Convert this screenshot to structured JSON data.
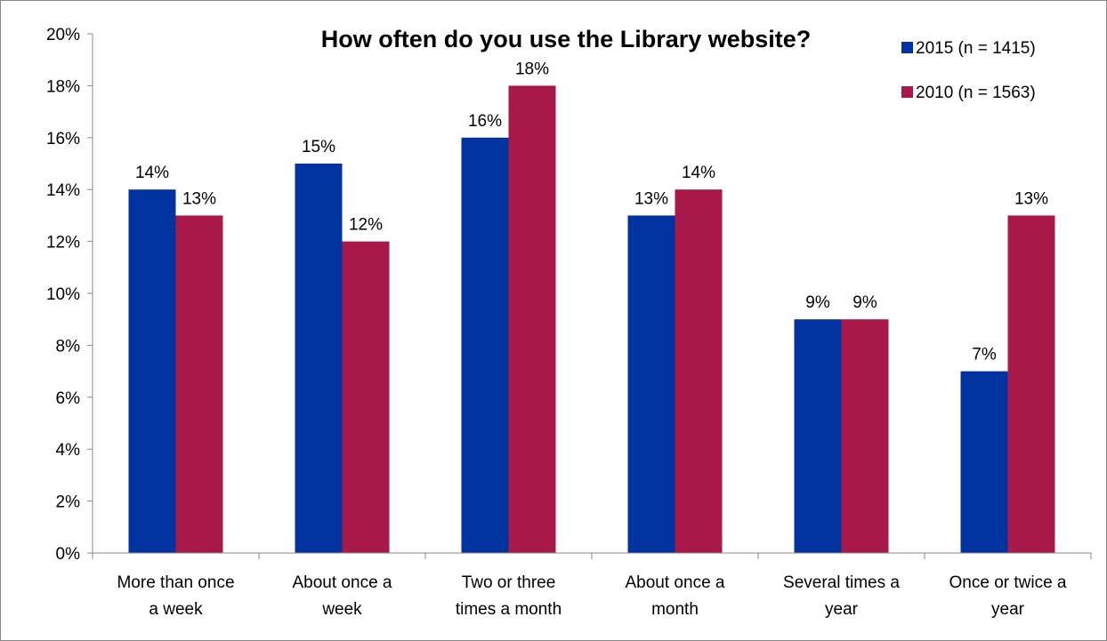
{
  "chart_data": {
    "type": "bar",
    "title": "How often do you use the Library website?",
    "xlabel": "",
    "ylabel": "",
    "ylim": [
      0,
      20
    ],
    "ytick_step": 2,
    "ytick_suffix": "%",
    "grid": false,
    "legend_position": "top-right",
    "categories": [
      [
        "More than once",
        "a week"
      ],
      [
        "About once a",
        "week"
      ],
      [
        "Two or three",
        "times a month"
      ],
      [
        "About once a",
        "month"
      ],
      [
        "Several times a",
        "year"
      ],
      [
        "Once or twice a",
        "year"
      ]
    ],
    "series": [
      {
        "name": "2015 (n = 1415)",
        "color": "#0033a0",
        "values": [
          14,
          15,
          16,
          13,
          9,
          7
        ]
      },
      {
        "name": "2010 (n = 1563)",
        "color": "#a8194a",
        "values": [
          13,
          12,
          18,
          14,
          9,
          13
        ]
      }
    ]
  }
}
